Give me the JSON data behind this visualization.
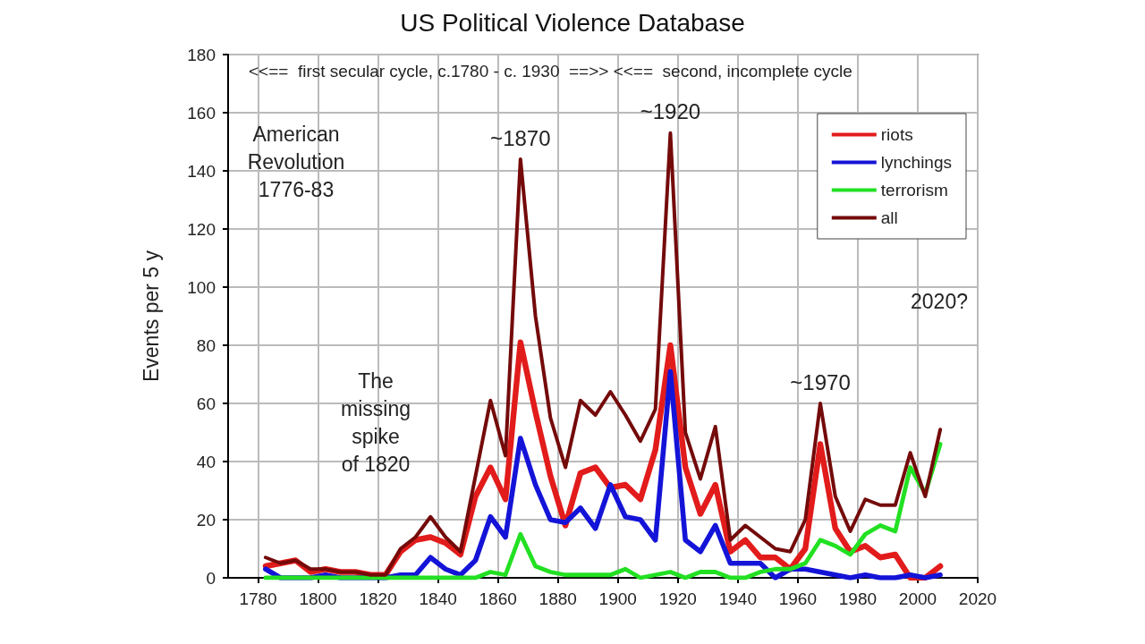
{
  "chart_data": {
    "type": "line",
    "title": "US Political Violence Database",
    "ylabel": "Events per 5 y",
    "x": [
      1782.5,
      1787.5,
      1792.5,
      1797.5,
      1802.5,
      1807.5,
      1812.5,
      1817.5,
      1822.5,
      1827.5,
      1832.5,
      1837.5,
      1842.5,
      1847.5,
      1852.5,
      1857.5,
      1862.5,
      1867.5,
      1872.5,
      1877.5,
      1882.5,
      1887.5,
      1892.5,
      1897.5,
      1902.5,
      1907.5,
      1912.5,
      1917.5,
      1922.5,
      1927.5,
      1932.5,
      1937.5,
      1942.5,
      1947.5,
      1952.5,
      1957.5,
      1962.5,
      1967.5,
      1972.5,
      1977.5,
      1982.5,
      1987.5,
      1992.5,
      1997.5,
      2002.5,
      2007.5
    ],
    "series": [
      {
        "name": "riots",
        "color": "#e21b1b",
        "values": [
          4,
          5,
          6,
          2,
          3,
          2,
          2,
          1,
          1,
          9,
          13,
          14,
          12,
          8,
          28,
          38,
          27,
          81,
          57,
          35,
          18,
          36,
          38,
          31,
          32,
          27,
          44,
          80,
          38,
          22,
          32,
          9,
          13,
          7,
          7,
          3,
          10,
          46,
          17,
          9,
          11,
          7,
          8,
          0,
          0,
          4
        ]
      },
      {
        "name": "lynchings",
        "color": "#1414d8",
        "values": [
          3,
          0,
          0,
          0,
          1,
          0,
          0,
          0,
          0,
          1,
          1,
          7,
          3,
          1,
          6,
          21,
          14,
          48,
          32,
          20,
          19,
          24,
          17,
          32,
          21,
          20,
          13,
          71,
          13,
          9,
          18,
          5,
          5,
          5,
          0,
          3,
          3,
          2,
          1,
          0,
          1,
          0,
          0,
          1,
          0,
          1
        ]
      },
      {
        "name": "terrorism",
        "color": "#22e022",
        "values": [
          0,
          0,
          0,
          0,
          0,
          0,
          0,
          0,
          0,
          0,
          0,
          0,
          0,
          0,
          0,
          2,
          1,
          15,
          4,
          2,
          1,
          1,
          1,
          1,
          3,
          0,
          1,
          2,
          0,
          2,
          2,
          0,
          0,
          2,
          3,
          3,
          5,
          13,
          11,
          8,
          15,
          18,
          16,
          38,
          29,
          46
        ]
      },
      {
        "name": "all",
        "color": "#740a0a",
        "values": [
          7,
          5,
          6,
          3,
          3,
          2,
          2,
          1,
          1,
          10,
          14,
          21,
          14,
          9,
          35,
          61,
          42,
          144,
          90,
          55,
          38,
          61,
          56,
          64,
          56,
          47,
          58,
          153,
          50,
          34,
          52,
          13,
          18,
          14,
          10,
          9,
          20,
          60,
          28,
          16,
          27,
          25,
          25,
          43,
          28,
          51
        ]
      }
    ],
    "xlim": [
      1770,
      2020
    ],
    "xticks": [
      1780,
      1800,
      1820,
      1840,
      1860,
      1880,
      1900,
      1920,
      1940,
      1960,
      1980,
      2000,
      2020
    ],
    "ylim": [
      0,
      180
    ],
    "yticks": [
      0,
      20,
      40,
      60,
      80,
      100,
      120,
      140,
      160,
      180
    ],
    "grid": true,
    "legend": "top right",
    "marker": "none",
    "line_style": "solid",
    "annotations": [
      "<<==  first secular cycle, c.1780 - c. 1930  ==>> <<==  second, incomplete cycle",
      "American\nRevolution\n1776-83",
      "The\nmissing\nspike\nof 1820",
      "2020?",
      {
        "text": "~1870",
        "x": 1867.5,
        "y": 144
      },
      {
        "text": "~1920",
        "x": 1917.5,
        "y": 153
      },
      {
        "text": "~1970",
        "x": 1967.5,
        "y": 60
      }
    ]
  }
}
